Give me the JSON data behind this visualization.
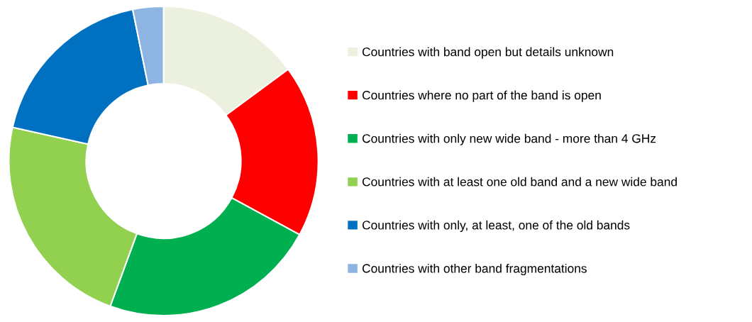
{
  "chart_data": {
    "type": "donut",
    "categories": [
      "Countries with band open but details unknown",
      "Countries where no part of the band is open",
      "Countries with only new wide band - more than 4 GHz",
      "Countries with at least one old band and a new wide band",
      "Countries with only, at least, one of the old bands",
      "Countries with other band fragmentations"
    ],
    "values": [
      14.9,
      18.0,
      22.7,
      22.9,
      18.3,
      3.2
    ],
    "colors": [
      "#ebf1de",
      "#ff0000",
      "#00b050",
      "#92d050",
      "#0070c0",
      "#8db4e2"
    ],
    "legend": "right"
  }
}
